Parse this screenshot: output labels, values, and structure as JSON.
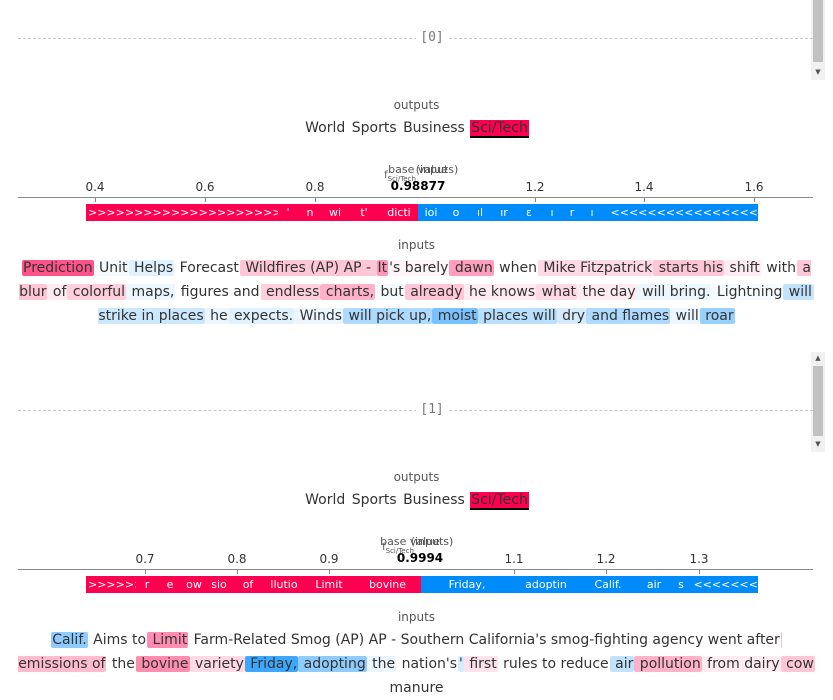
{
  "outputs_label": "outputs",
  "inputs_label": "inputs",
  "classes": [
    "World",
    "Sports",
    "Business",
    "Sci/Tech"
  ],
  "selected_class": "Sci/Tech",
  "base_value_label": "base value",
  "inputs_axis_label": "(inputs)",
  "fx_label": "f",
  "fx_sub": "Sci/Tech",
  "samples": [
    {
      "index": "[0]",
      "fx_value": "0.98877",
      "axis_ticks": [
        "0.4",
        "0.6",
        "0.8",
        "1.0",
        "1.2",
        "1.4",
        "1.6"
      ],
      "pos_labels": [
        "'",
        "n",
        "wi",
        "t'",
        "dicti"
      ],
      "neg_labels": [
        "ioi",
        "o",
        "ıl",
        "ır",
        "ε",
        "ı",
        "r",
        "ı"
      ],
      "tokens": [
        {
          "t": "Prediction",
          "w": 0.9,
          "s": "pos"
        },
        {
          "t": " Unit",
          "w": 0.05,
          "s": "neg"
        },
        {
          "t": " Helps",
          "w": 0.15,
          "s": "neg"
        },
        {
          "t": " Forecast",
          "w": 0.0,
          "s": "pos"
        },
        {
          "t": " Wildfires (AP) AP - ",
          "w": 0.3,
          "s": "pos"
        },
        {
          "t": "It",
          "w": 0.55,
          "s": "pos"
        },
        {
          "t": "'s barely",
          "w": 0.05,
          "s": "pos"
        },
        {
          "t": " dawn",
          "w": 0.5,
          "s": "pos"
        },
        {
          "t": " when",
          "w": 0.0,
          "s": "pos"
        },
        {
          "t": " Mike Fitzpatrick",
          "w": 0.2,
          "s": "pos"
        },
        {
          "t": " starts his",
          "w": 0.3,
          "s": "pos"
        },
        {
          "t": " shift",
          "w": 0.1,
          "s": "pos"
        },
        {
          "t": " with",
          "w": 0.0,
          "s": "pos"
        },
        {
          "t": " a blur",
          "w": 0.3,
          "s": "pos"
        },
        {
          "t": " of",
          "w": 0.1,
          "s": "pos"
        },
        {
          "t": " colorful",
          "w": 0.25,
          "s": "pos"
        },
        {
          "t": " maps,",
          "w": 0.1,
          "s": "neg"
        },
        {
          "t": " figures and",
          "w": 0.0,
          "s": "pos"
        },
        {
          "t": " endless",
          "w": 0.25,
          "s": "pos"
        },
        {
          "t": " charts,",
          "w": 0.4,
          "s": "pos"
        },
        {
          "t": " but",
          "w": 0.05,
          "s": "neg"
        },
        {
          "t": " already",
          "w": 0.3,
          "s": "pos"
        },
        {
          "t": " he knows",
          "w": 0.1,
          "s": "pos"
        },
        {
          "t": " what",
          "w": 0.2,
          "s": "pos"
        },
        {
          "t": " the day",
          "w": 0.1,
          "s": "pos"
        },
        {
          "t": " will bring.",
          "w": 0.1,
          "s": "neg"
        },
        {
          "t": " Lightning",
          "w": 0.05,
          "s": "neg"
        },
        {
          "t": " will",
          "w": 0.3,
          "s": "neg"
        },
        {
          "t": " strike in places",
          "w": 0.25,
          "s": "neg"
        },
        {
          "t": " he",
          "w": 0.1,
          "s": "neg"
        },
        {
          "t": " expects.",
          "w": 0.15,
          "s": "neg"
        },
        {
          "t": " Winds",
          "w": 0.1,
          "s": "neg"
        },
        {
          "t": " will pick up,",
          "w": 0.4,
          "s": "neg"
        },
        {
          "t": " moist",
          "w": 0.65,
          "s": "neg"
        },
        {
          "t": " places will",
          "w": 0.35,
          "s": "neg"
        },
        {
          "t": " dry",
          "w": 0.2,
          "s": "neg"
        },
        {
          "t": " and flames",
          "w": 0.4,
          "s": "neg"
        },
        {
          "t": " will",
          "w": 0.1,
          "s": "neg"
        },
        {
          "t": " roar",
          "w": 0.5,
          "s": "neg"
        }
      ]
    },
    {
      "index": "[1]",
      "fx_value": "0.9994",
      "axis_ticks": [
        "0.7",
        "0.8",
        "0.9",
        "1.0",
        "1.1",
        "1.2",
        "1.3"
      ],
      "pos_labels": [
        "r",
        "e",
        "ow",
        "sio",
        "of",
        "llutio",
        "Limit",
        "bovine"
      ],
      "neg_labels": [
        "Friday,",
        "adoptin",
        "Calif.",
        "air",
        "s"
      ],
      "tokens": [
        {
          "t": "Calif.",
          "w": 0.55,
          "s": "neg"
        },
        {
          "t": " Aims to",
          "w": 0.0,
          "s": "pos"
        },
        {
          "t": " Limit",
          "w": 0.6,
          "s": "pos"
        },
        {
          "t": " Farm-Related Smog (AP) AP - Southern California's smog-fighting agency went after",
          "w": 0.0,
          "s": "pos"
        },
        {
          "t": " emissions of",
          "w": 0.35,
          "s": "pos"
        },
        {
          "t": " the",
          "w": 0.0,
          "s": "pos"
        },
        {
          "t": " bovine",
          "w": 0.6,
          "s": "pos"
        },
        {
          "t": " variety",
          "w": 0.2,
          "s": "pos"
        },
        {
          "t": " Friday,",
          "w": 0.95,
          "s": "neg"
        },
        {
          "t": " adopting",
          "w": 0.55,
          "s": "neg"
        },
        {
          "t": " the",
          "w": 0.1,
          "s": "neg"
        },
        {
          "t": " nation's",
          "w": 0.0,
          "s": "pos"
        },
        {
          "t": "'",
          "w": 0.2,
          "s": "neg"
        },
        {
          "t": " first",
          "w": 0.15,
          "s": "pos"
        },
        {
          "t": " rules to reduce",
          "w": 0.0,
          "s": "pos"
        },
        {
          "t": " air",
          "w": 0.3,
          "s": "neg"
        },
        {
          "t": " pollution",
          "w": 0.4,
          "s": "pos"
        },
        {
          "t": " from dairy",
          "w": 0.1,
          "s": "pos"
        },
        {
          "t": " cow",
          "w": 0.3,
          "s": "pos"
        },
        {
          "t": " manure",
          "w": 0.0,
          "s": "pos"
        }
      ]
    }
  ]
}
